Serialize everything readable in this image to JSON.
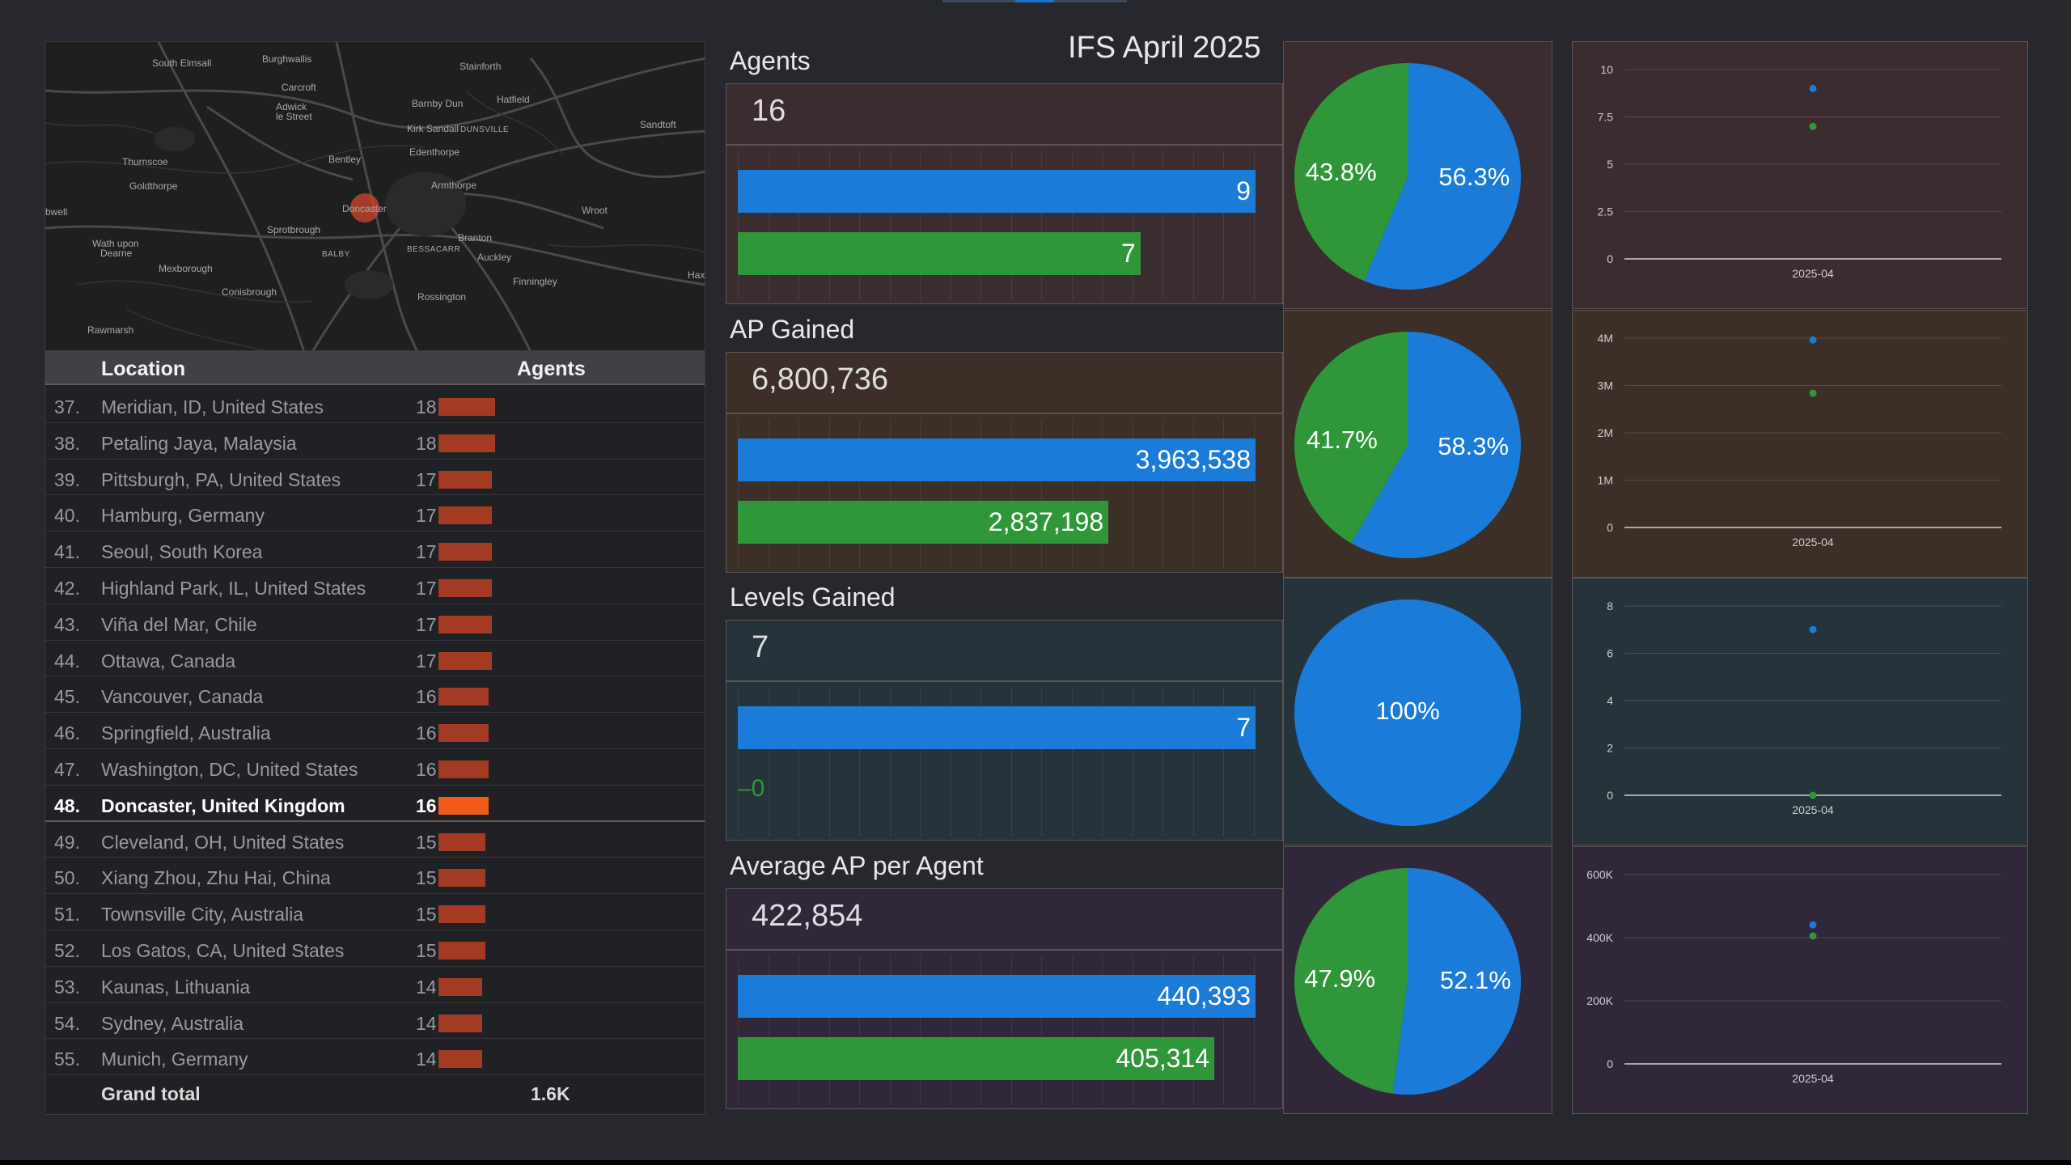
{
  "dashboard": {
    "title": "IFS April 2025"
  },
  "map": {
    "labels": [
      "South Elmsall",
      "Burghwallis",
      "Stainforth",
      "Carcroft",
      "Adwick",
      "le Street",
      "Barnby Dun",
      "Hatfield",
      "Sandtoft",
      "Kirk Sandall",
      "DUNSVILLE",
      "Edenthorpe",
      "Thurnscoe",
      "Bentley",
      "Goldthorpe",
      "Armthorpe",
      "Doncaster",
      "Wroot",
      "bwell",
      "Sprotbrough",
      "BALBY",
      "Branton",
      "Wath upon",
      "Dearne",
      "BESSACARR",
      "Auckley",
      "Mexborough",
      "Finningley",
      "Hax",
      "Conisbrough",
      "Rossington",
      "Rawmarsh"
    ]
  },
  "table": {
    "header_location": "Location",
    "header_agents": "Agents",
    "bar_max": 18,
    "rows": [
      {
        "rank": "37.",
        "location": "Meridian, ID, United States",
        "agents": "18",
        "value": 18
      },
      {
        "rank": "38.",
        "location": "Petaling Jaya, Malaysia",
        "agents": "18",
        "value": 18
      },
      {
        "rank": "39.",
        "location": "Pittsburgh, PA, United States",
        "agents": "17",
        "value": 17
      },
      {
        "rank": "40.",
        "location": "Hamburg, Germany",
        "agents": "17",
        "value": 17
      },
      {
        "rank": "41.",
        "location": "Seoul, South Korea",
        "agents": "17",
        "value": 17
      },
      {
        "rank": "42.",
        "location": "Highland Park, IL, United States",
        "agents": "17",
        "value": 17
      },
      {
        "rank": "43.",
        "location": "Viña del Mar, Chile",
        "agents": "17",
        "value": 17
      },
      {
        "rank": "44.",
        "location": "Ottawa, Canada",
        "agents": "17",
        "value": 17
      },
      {
        "rank": "45.",
        "location": "Vancouver, Canada",
        "agents": "16",
        "value": 16
      },
      {
        "rank": "46.",
        "location": "Springfield, Australia",
        "agents": "16",
        "value": 16
      },
      {
        "rank": "47.",
        "location": "Washington, DC, United States",
        "agents": "16",
        "value": 16
      },
      {
        "rank": "48.",
        "location": "Doncaster, United Kingdom",
        "agents": "16",
        "value": 16,
        "highlight": true
      },
      {
        "rank": "49.",
        "location": "Cleveland, OH, United States",
        "agents": "15",
        "value": 15
      },
      {
        "rank": "50.",
        "location": "Xiang Zhou, Zhu Hai, China",
        "agents": "15",
        "value": 15
      },
      {
        "rank": "51.",
        "location": "Townsville City, Australia",
        "agents": "15",
        "value": 15
      },
      {
        "rank": "52.",
        "location": "Los Gatos, CA, United States",
        "agents": "15",
        "value": 15
      },
      {
        "rank": "53.",
        "location": "Kaunas, Lithuania",
        "agents": "14",
        "value": 14
      },
      {
        "rank": "54.",
        "location": "Sydney, Australia",
        "agents": "14",
        "value": 14
      },
      {
        "rank": "55.",
        "location": "Munich, Germany",
        "agents": "14",
        "value": 14
      }
    ],
    "footer_label": "Grand total",
    "footer_value": "1.6K"
  },
  "colors": {
    "blue": "#1a7bd9",
    "green": "#30963a",
    "table_bar": "#a33a22",
    "table_bar_highlight": "#f25a1a"
  },
  "metrics": [
    {
      "key": "agents",
      "title": "Agents",
      "total": "16",
      "bar_max": 9,
      "bars": [
        {
          "value": 9,
          "label": "9"
        },
        {
          "value": 7,
          "label": "7"
        }
      ],
      "pie": [
        {
          "percent": 56.3,
          "label": "56.3%"
        },
        {
          "percent": 43.8,
          "label": "43.8%"
        }
      ],
      "scatter": {
        "ticks": [
          "0",
          "2.5",
          "5",
          "7.5",
          "10"
        ],
        "tick_values": [
          0,
          2.5,
          5,
          7.5,
          10
        ],
        "ymax": 10,
        "x_label": "2025-04",
        "points": [
          9,
          7
        ]
      }
    },
    {
      "key": "ap",
      "title": "AP Gained",
      "total": "6,800,736",
      "bar_max": 3963538,
      "bars": [
        {
          "value": 3963538,
          "label": "3,963,538"
        },
        {
          "value": 2837198,
          "label": "2,837,198"
        }
      ],
      "pie": [
        {
          "percent": 58.3,
          "label": "58.3%"
        },
        {
          "percent": 41.7,
          "label": "41.7%"
        }
      ],
      "scatter": {
        "ticks": [
          "0",
          "1M",
          "2M",
          "3M",
          "4M"
        ],
        "tick_values": [
          0,
          1000000,
          2000000,
          3000000,
          4000000
        ],
        "ymax": 4000000,
        "x_label": "2025-04",
        "points": [
          3963538,
          2837198
        ]
      }
    },
    {
      "key": "lv",
      "title": "Levels Gained",
      "total": "7",
      "bar_max": 7,
      "bars": [
        {
          "value": 7,
          "label": "7"
        },
        {
          "value": 0,
          "label": "0"
        }
      ],
      "pie": [
        {
          "percent": 100,
          "label": "100%"
        }
      ],
      "scatter": {
        "ticks": [
          "0",
          "2",
          "4",
          "6",
          "8"
        ],
        "tick_values": [
          0,
          2,
          4,
          6,
          8
        ],
        "ymax": 8,
        "x_label": "2025-04",
        "points": [
          7,
          0
        ]
      }
    },
    {
      "key": "avg",
      "title": "Average AP per Agent",
      "total": "422,854",
      "bar_max": 440393,
      "bars": [
        {
          "value": 440393,
          "label": "440,393"
        },
        {
          "value": 405314,
          "label": "405,314"
        }
      ],
      "pie": [
        {
          "percent": 52.1,
          "label": "52.1%"
        },
        {
          "percent": 47.9,
          "label": "47.9%"
        }
      ],
      "scatter": {
        "ticks": [
          "0",
          "200K",
          "400K",
          "600K"
        ],
        "tick_values": [
          0,
          200000,
          400000,
          600000
        ],
        "ymax": 600000,
        "x_label": "2025-04",
        "points": [
          440393,
          405314
        ]
      }
    }
  ]
}
